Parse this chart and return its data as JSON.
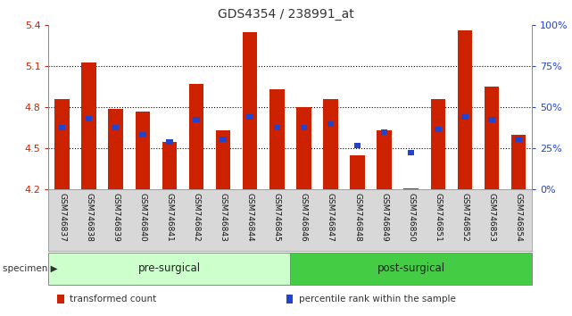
{
  "title": "GDS4354 / 238991_at",
  "samples": [
    "GSM746837",
    "GSM746838",
    "GSM746839",
    "GSM746840",
    "GSM746841",
    "GSM746842",
    "GSM746843",
    "GSM746844",
    "GSM746845",
    "GSM746846",
    "GSM746847",
    "GSM746848",
    "GSM746849",
    "GSM746850",
    "GSM746851",
    "GSM746852",
    "GSM746853",
    "GSM746854"
  ],
  "red_values": [
    4.86,
    5.13,
    4.79,
    4.77,
    4.55,
    4.97,
    4.63,
    5.35,
    4.93,
    4.8,
    4.86,
    4.45,
    4.63,
    4.21,
    4.86,
    5.36,
    4.95,
    4.6
  ],
  "blue_values": [
    4.65,
    4.72,
    4.65,
    4.6,
    4.55,
    4.71,
    4.57,
    4.73,
    4.65,
    4.65,
    4.68,
    4.52,
    4.62,
    4.47,
    4.64,
    4.73,
    4.71,
    4.57
  ],
  "ylim": [
    4.2,
    5.4
  ],
  "yticks_left": [
    4.2,
    4.5,
    4.8,
    5.1,
    5.4
  ],
  "yticks_right_pct": [
    0,
    25,
    50,
    75,
    100
  ],
  "right_labels": [
    "0%",
    "25%",
    "50%",
    "75%",
    "100%"
  ],
  "bar_color_red": "#cc2200",
  "bar_color_blue": "#2244cc",
  "bar_width": 0.55,
  "pre_surgical_color": "#ccffcc",
  "post_surgical_color": "#44cc44",
  "pre_surgical_count": 9,
  "post_surgical_count": 9,
  "left_axis_color": "#cc2200",
  "right_axis_color": "#2244cc",
  "grid_yticks": [
    4.5,
    4.8,
    5.1
  ],
  "legend": [
    {
      "label": "transformed count",
      "color": "#cc2200"
    },
    {
      "label": "percentile rank within the sample",
      "color": "#2244cc"
    }
  ]
}
